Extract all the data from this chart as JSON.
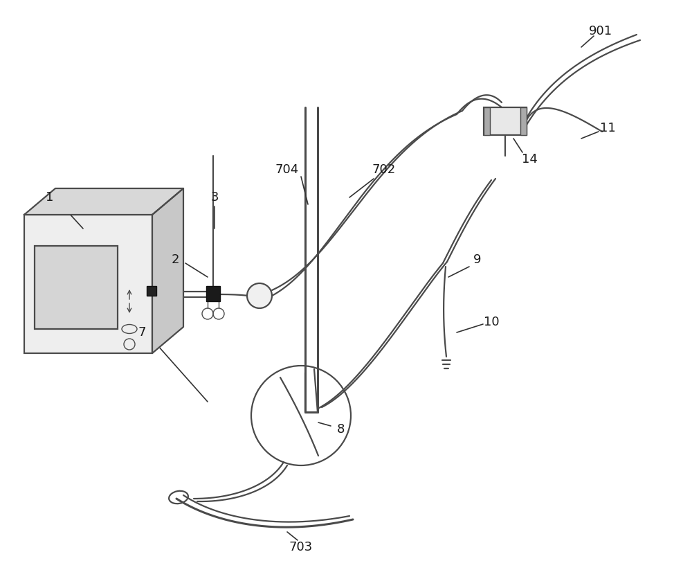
{
  "bg_color": "#ffffff",
  "line_color": "#4a4a4a",
  "label_color": "#1a1a1a",
  "figsize": [
    10.0,
    8.1
  ],
  "dpi": 100,
  "lw": 1.6,
  "lw_thick": 2.2
}
